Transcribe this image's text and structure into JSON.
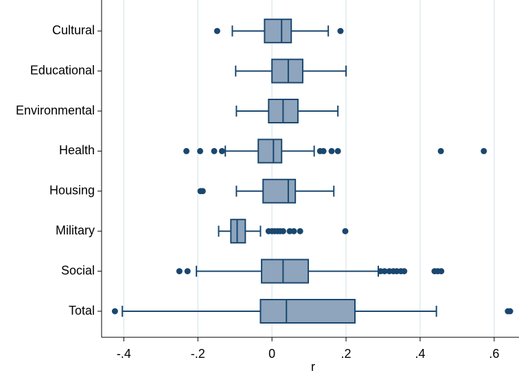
{
  "chart_data": {
    "type": "box",
    "x_label": "r",
    "categories": [
      "Cultural",
      "Educational",
      "Environmental",
      "Health",
      "Housing",
      "Military",
      "Social",
      "Total"
    ],
    "boxes": [
      {
        "whislo": -0.107,
        "q1": -0.02,
        "med": 0.026,
        "q3": 0.052,
        "whishi": 0.152,
        "fliers": [
          -0.148,
          0.185
        ]
      },
      {
        "whislo": -0.098,
        "q1": 0.0,
        "med": 0.044,
        "q3": 0.083,
        "whishi": 0.2,
        "fliers": []
      },
      {
        "whislo": -0.096,
        "q1": -0.009,
        "med": 0.03,
        "q3": 0.07,
        "whishi": 0.178,
        "fliers": []
      },
      {
        "whislo": -0.126,
        "q1": -0.037,
        "med": 0.004,
        "q3": 0.026,
        "whishi": 0.114,
        "fliers": [
          -0.231,
          -0.194,
          -0.156,
          -0.135,
          0.13,
          0.139,
          0.161,
          0.178,
          0.456,
          0.572
        ]
      },
      {
        "whislo": -0.096,
        "q1": -0.024,
        "med": 0.044,
        "q3": 0.063,
        "whishi": 0.167,
        "fliers": [
          -0.193,
          -0.187
        ]
      },
      {
        "whislo": -0.144,
        "q1": -0.111,
        "med": -0.094,
        "q3": -0.072,
        "whishi": -0.031,
        "fliers": [
          -0.009,
          0.0,
          0.007,
          0.015,
          0.022,
          0.03,
          0.048,
          0.059,
          0.076,
          0.198
        ]
      },
      {
        "whislo": -0.204,
        "q1": -0.028,
        "med": 0.03,
        "q3": 0.098,
        "whishi": 0.287,
        "fliers": [
          -0.25,
          -0.228,
          0.293,
          0.304,
          0.317,
          0.328,
          0.337,
          0.348,
          0.357,
          0.439,
          0.448,
          0.457
        ]
      },
      {
        "whislo": -0.404,
        "q1": -0.031,
        "med": 0.039,
        "q3": 0.224,
        "whishi": 0.444,
        "fliers": [
          -0.424,
          0.637,
          0.643
        ]
      }
    ],
    "xlim": [
      -0.46,
      0.667
    ],
    "xticks": [
      {
        "value": -0.4,
        "label": "-.4"
      },
      {
        "value": -0.2,
        "label": "-.2"
      },
      0,
      {
        "value": 0.2,
        "label": ".2"
      },
      {
        "value": 0.4,
        "label": ".4"
      },
      {
        "value": 0.6,
        "label": ".6"
      }
    ],
    "grid": true,
    "color": "#8ea5bd",
    "edge_color": "#1a476f"
  }
}
